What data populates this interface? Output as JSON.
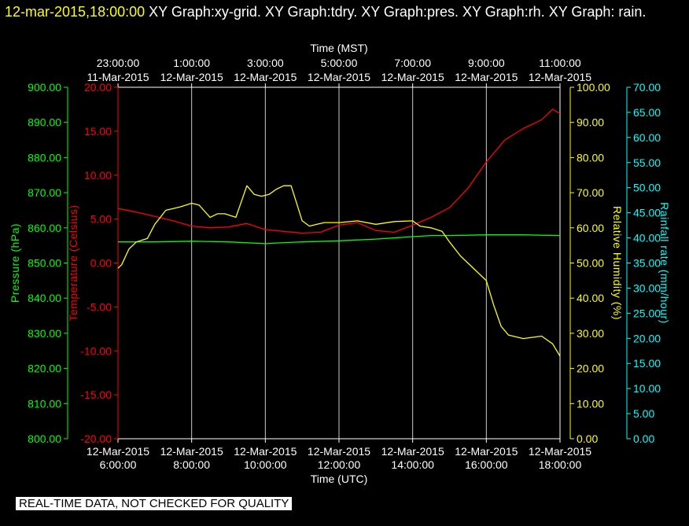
{
  "header": {
    "timestamp": "12-mar-2015,18:00:00",
    "graphs_text": " XY Graph:xy-grid.  XY Graph:tdry.  XY Graph:pres.  XY Graph:rh.  XY Graph: rain."
  },
  "notice": "REAL-TIME DATA, NOT CHECKED FOR QUALITY",
  "colors": {
    "pressure": "#00ff00",
    "temperature": "#ff0000",
    "humidity": "#ffff00",
    "rainfall": "#00ffff",
    "frame": "#ffffff",
    "gridline": "#ffffff"
  },
  "chart_data": {
    "type": "line",
    "grid": true,
    "x_bottom": {
      "label": "Time (UTC)",
      "ticks": [
        {
          "hour": 6,
          "date": "12-Mar-2015",
          "time": "6:00:00"
        },
        {
          "hour": 8,
          "date": "12-Mar-2015",
          "time": "8:00:00"
        },
        {
          "hour": 10,
          "date": "12-Mar-2015",
          "time": "10:00:00"
        },
        {
          "hour": 12,
          "date": "12-Mar-2015",
          "time": "12:00:00"
        },
        {
          "hour": 14,
          "date": "12-Mar-2015",
          "time": "14:00:00"
        },
        {
          "hour": 16,
          "date": "12-Mar-2015",
          "time": "16:00:00"
        },
        {
          "hour": 18,
          "date": "12-Mar-2015",
          "time": "18:00:00"
        }
      ],
      "range_hours": [
        6,
        18
      ]
    },
    "x_top": {
      "label": "Time (MST)",
      "ticks": [
        {
          "hour": 6,
          "time": "23:00:00",
          "date": "11-Mar-2015"
        },
        {
          "hour": 8,
          "time": "1:00:00",
          "date": "12-Mar-2015"
        },
        {
          "hour": 10,
          "time": "3:00:00",
          "date": "12-Mar-2015"
        },
        {
          "hour": 12,
          "time": "5:00:00",
          "date": "12-Mar-2015"
        },
        {
          "hour": 14,
          "time": "7:00:00",
          "date": "12-Mar-2015"
        },
        {
          "hour": 16,
          "time": "9:00:00",
          "date": "12-Mar-2015"
        },
        {
          "hour": 18,
          "time": "11:00:00",
          "date": "12-Mar-2015"
        }
      ]
    },
    "axes": {
      "pressure": {
        "label": "Pressure (hPa)",
        "range": [
          800,
          900
        ],
        "ticks": [
          "800.00",
          "810.00",
          "820.00",
          "830.00",
          "840.00",
          "850.00",
          "860.00",
          "870.00",
          "880.00",
          "890.00",
          "900.00"
        ]
      },
      "temperature": {
        "label": "Temperature (Celsius)",
        "range": [
          -20,
          20
        ],
        "ticks": [
          "-20.00",
          "-15.00",
          "-10.00",
          "-5.00",
          "0.00",
          "5.00",
          "10.00",
          "15.00",
          "20.00"
        ]
      },
      "humidity": {
        "label": "Relative Humidity (%)",
        "range": [
          0,
          100
        ],
        "ticks": [
          "0.00",
          "10.00",
          "20.00",
          "30.00",
          "40.00",
          "50.00",
          "60.00",
          "70.00",
          "80.00",
          "90.00",
          "100.00"
        ]
      },
      "rainfall": {
        "label": "Rainfall rate (mm/hour)",
        "range": [
          0,
          70
        ],
        "ticks": [
          "0.00",
          "5.00",
          "10.00",
          "15.00",
          "20.00",
          "25.00",
          "30.00",
          "35.00",
          "40.00",
          "45.00",
          "50.00",
          "55.00",
          "60.00",
          "65.00",
          "70.00"
        ]
      }
    },
    "series": [
      {
        "key": "temperature",
        "x": [
          6.0,
          6.5,
          7.0,
          7.5,
          8.0,
          8.5,
          9.0,
          9.5,
          10.0,
          10.5,
          11.0,
          11.5,
          12.0,
          12.5,
          13.0,
          13.5,
          14.0,
          14.5,
          15.0,
          15.5,
          16.0,
          16.5,
          17.0,
          17.5,
          17.8,
          18.0
        ],
        "y": [
          6.2,
          5.8,
          5.3,
          4.8,
          4.2,
          4.0,
          4.1,
          4.5,
          3.8,
          3.6,
          3.4,
          3.5,
          4.3,
          4.6,
          3.7,
          3.5,
          4.3,
          5.2,
          6.3,
          8.5,
          11.5,
          14.0,
          15.3,
          16.3,
          17.5,
          17.0
        ]
      },
      {
        "key": "pressure",
        "x": [
          6.0,
          7.0,
          8.0,
          9.0,
          10.0,
          10.5,
          11.0,
          12.0,
          13.0,
          14.0,
          14.5,
          15.0,
          16.0,
          17.0,
          18.0
        ],
        "y": [
          856.0,
          856.0,
          856.2,
          856.0,
          855.5,
          855.8,
          856.0,
          856.3,
          856.8,
          857.5,
          857.8,
          857.8,
          858.0,
          858.0,
          857.8
        ]
      },
      {
        "key": "humidity",
        "x": [
          6.0,
          6.1,
          6.3,
          6.5,
          6.8,
          7.0,
          7.3,
          7.5,
          7.7,
          8.0,
          8.2,
          8.5,
          8.7,
          8.9,
          9.2,
          9.5,
          9.7,
          9.9,
          10.1,
          10.3,
          10.5,
          10.7,
          11.0,
          11.2,
          11.4,
          11.6,
          12.0,
          12.5,
          13.0,
          13.5,
          14.0,
          14.2,
          14.5,
          14.8,
          15.0,
          15.3,
          15.6,
          16.0,
          16.2,
          16.4,
          16.6,
          16.8,
          17.0,
          17.5,
          17.8,
          18.0
        ],
        "y": [
          48.5,
          49.5,
          54,
          56,
          57,
          61,
          65,
          65.5,
          66,
          67,
          66.5,
          63,
          64,
          64,
          63,
          72,
          69.5,
          69,
          69.5,
          71,
          72,
          72,
          62,
          60.5,
          61,
          61.5,
          61.5,
          62,
          61,
          61.8,
          62,
          60.5,
          60,
          59,
          56,
          52,
          49,
          45,
          38,
          32,
          29.5,
          29,
          28.5,
          29.2,
          27,
          23.5
        ]
      },
      {
        "key": "rainfall",
        "x": [],
        "y": []
      }
    ]
  }
}
